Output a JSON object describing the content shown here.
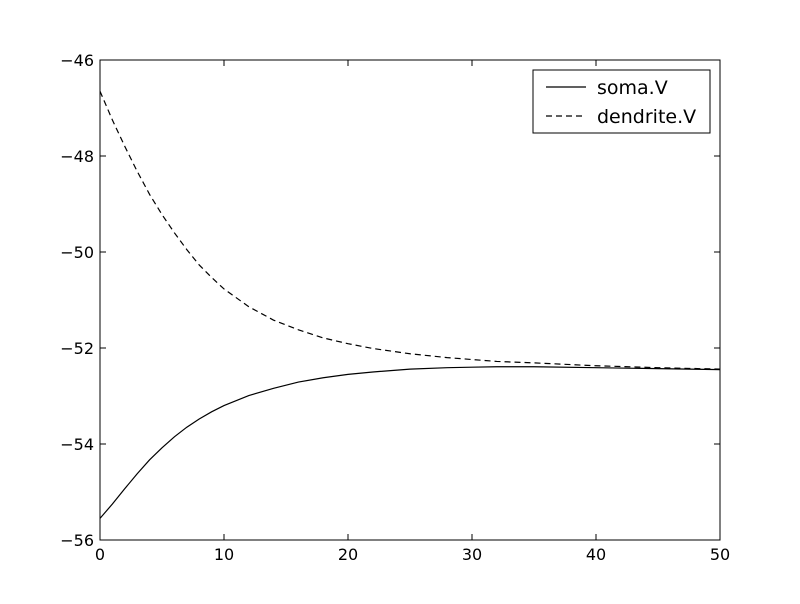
{
  "chart_data": {
    "type": "line",
    "title": "",
    "xlabel": "",
    "ylabel": "",
    "xlim": [
      0,
      50
    ],
    "ylim": [
      -56,
      -46
    ],
    "grid": false,
    "legend_position": "top-right",
    "x_ticks": [
      0,
      10,
      20,
      30,
      40,
      50
    ],
    "y_ticks": [
      -56,
      -54,
      -52,
      -50,
      -48,
      -46
    ],
    "x_tick_labels": [
      "0",
      "10",
      "20",
      "30",
      "40",
      "50"
    ],
    "y_tick_labels": [
      "−56",
      "−54",
      "−52",
      "−50",
      "−48",
      "−46"
    ],
    "series": [
      {
        "name": "soma.V",
        "style": "solid",
        "color": "#000000",
        "x": [
          0,
          1,
          2,
          3,
          4,
          5,
          6,
          7,
          8,
          9,
          10,
          12,
          14,
          16,
          18,
          20,
          22,
          25,
          28,
          30,
          32,
          35,
          40,
          45,
          50
        ],
        "y": [
          -55.55,
          -55.25,
          -54.93,
          -54.62,
          -54.33,
          -54.08,
          -53.85,
          -53.65,
          -53.48,
          -53.33,
          -53.2,
          -52.99,
          -52.84,
          -52.71,
          -52.62,
          -52.55,
          -52.5,
          -52.44,
          -52.41,
          -52.4,
          -52.39,
          -52.39,
          -52.41,
          -52.43,
          -52.45
        ]
      },
      {
        "name": "dendrite.V",
        "style": "dashed",
        "color": "#000000",
        "x": [
          0,
          1,
          2,
          3,
          4,
          5,
          6,
          7,
          8,
          9,
          10,
          12,
          14,
          16,
          18,
          20,
          22,
          25,
          28,
          30,
          32,
          35,
          40,
          45,
          50
        ],
        "y": [
          -46.65,
          -47.25,
          -47.8,
          -48.32,
          -48.8,
          -49.22,
          -49.6,
          -49.95,
          -50.27,
          -50.53,
          -50.77,
          -51.14,
          -51.42,
          -51.62,
          -51.79,
          -51.91,
          -52.01,
          -52.12,
          -52.2,
          -52.24,
          -52.28,
          -52.31,
          -52.37,
          -52.41,
          -52.44
        ]
      }
    ]
  }
}
